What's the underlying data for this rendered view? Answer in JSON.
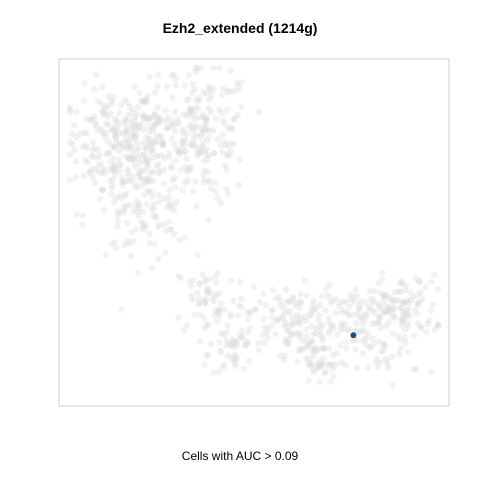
{
  "chart_data": {
    "type": "scatter",
    "title": "Ezh2_extended (1214g)",
    "caption": "Cells with AUC > 0.09",
    "xlabel": "",
    "ylabel": "",
    "grid": false,
    "axes_visible": false,
    "background_color": "#d9d9d9",
    "highlight_color": "#1f4e79",
    "highlight_points": [
      [
        0.77,
        0.19
      ]
    ],
    "clusters": [
      {
        "name": "",
        "cx": 0.11,
        "cy": 0.78,
        "sx": 0.06,
        "sy": 0.08,
        "n": 150
      },
      {
        "name": "",
        "cx": 0.22,
        "cy": 0.77,
        "sx": 0.07,
        "sy": 0.09,
        "n": 200
      },
      {
        "name": "",
        "cx": 0.37,
        "cy": 0.8,
        "sx": 0.06,
        "sy": 0.1,
        "n": 160
      },
      {
        "name": "",
        "cx": 0.18,
        "cy": 0.55,
        "sx": 0.07,
        "sy": 0.07,
        "n": 90
      },
      {
        "name": "",
        "cx": 0.38,
        "cy": 0.3,
        "sx": 0.05,
        "sy": 0.06,
        "n": 60
      },
      {
        "name": "",
        "cx": 0.44,
        "cy": 0.16,
        "sx": 0.03,
        "sy": 0.05,
        "n": 50
      },
      {
        "name": "",
        "cx": 0.6,
        "cy": 0.24,
        "sx": 0.06,
        "sy": 0.05,
        "n": 120
      },
      {
        "name": "",
        "cx": 0.67,
        "cy": 0.11,
        "sx": 0.04,
        "sy": 0.04,
        "n": 50
      },
      {
        "name": "",
        "cx": 0.89,
        "cy": 0.27,
        "sx": 0.06,
        "sy": 0.05,
        "n": 130
      },
      {
        "name": "",
        "cx": 0.77,
        "cy": 0.23,
        "sx": 0.04,
        "sy": 0.05,
        "n": 50
      },
      {
        "name": "",
        "cx": 0.85,
        "cy": 0.12,
        "sx": 0.05,
        "sy": 0.04,
        "n": 30
      }
    ],
    "xlim": [
      0,
      1
    ],
    "ylim": [
      0,
      1
    ]
  }
}
